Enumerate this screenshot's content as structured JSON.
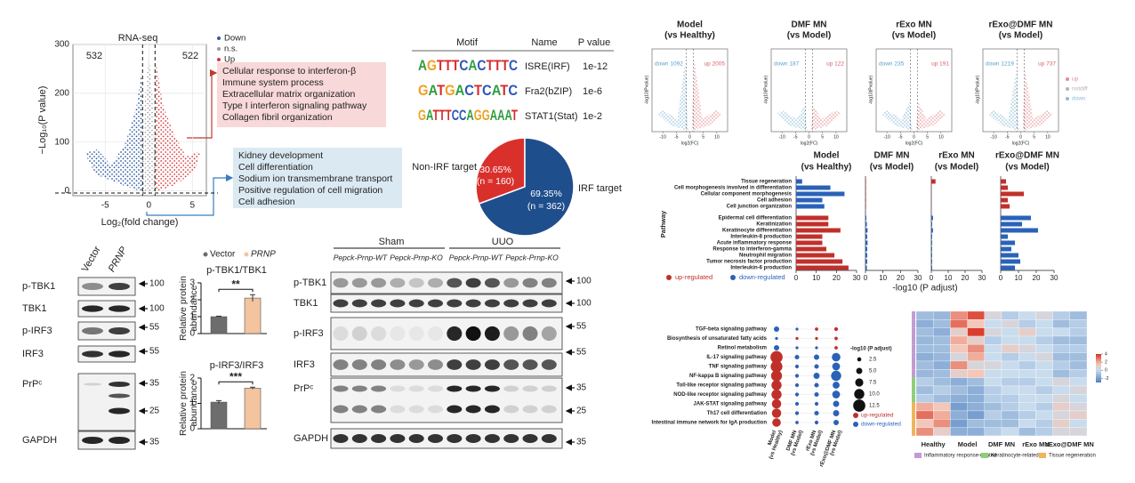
{
  "volcano": {
    "title": "RNA-seq",
    "legend": [
      {
        "label": "Down",
        "color": "#2f5c9c"
      },
      {
        "label": "n.s.",
        "color": "#9a9a9a"
      },
      {
        "label": "Up",
        "color": "#d8363a"
      }
    ],
    "count_down": 532,
    "count_up": 522,
    "xlim": [
      -8.7,
      6.6
    ],
    "ylim": [
      -10,
      300
    ],
    "xticks": [
      -5,
      0,
      5
    ],
    "yticks": [
      0,
      100,
      200,
      300
    ],
    "xlabel": "Log₂(fold change)",
    "ylabel": "−Log₁₀(P value)"
  },
  "terms_up": [
    "Cellular response to interferon-β",
    "Immune system process",
    "Extracellular matrix organization",
    "Type I interferon signaling pathway",
    "Collagen fibril organization"
  ],
  "terms_down": [
    "Kidney development",
    "Cell differentiation",
    "Sodium ion transmembrane transport",
    "Positive regulation of cell migration",
    "Cell adhesion"
  ],
  "motif": {
    "headers": [
      "Motif",
      "Name",
      "P value"
    ],
    "rows": [
      {
        "motif": "AGTTTCACTTTC",
        "name": "ISRE(IRF)",
        "p": "1e-12"
      },
      {
        "motif": "GATGACTCATC",
        "name": "Fra2(bZIP)",
        "p": "1e-6"
      },
      {
        "motif": "GATTTCCAGGAAAT",
        "name": "STAT1(Stat)",
        "p": "1e-2"
      }
    ]
  },
  "pie": {
    "slices": [
      {
        "label": "Non-IRF target",
        "value": 30.65,
        "percent": "30.65%",
        "n": "(n = 160)",
        "color": "#d9302c"
      },
      {
        "label": "IRF target",
        "value": 69.35,
        "percent": "69.35%",
        "n": "(n = 362)",
        "color": "#1f4e8c"
      }
    ]
  },
  "blot_c": {
    "lanes": [
      "Vector",
      "PRNP"
    ],
    "rows": [
      "p-TBK1",
      "TBK1",
      "p-IRF3",
      "IRF3",
      "PrPᶜ",
      "GAPDH"
    ],
    "markers": [
      100,
      100,
      55,
      55,
      35,
      25,
      35
    ]
  },
  "bars_d": {
    "legend": [
      {
        "label": "Vector",
        "color": "#6d6d6d"
      },
      {
        "label": "PRNP",
        "color": "#f3c49e"
      }
    ],
    "ylabel": [
      "Relative protein",
      "abundance"
    ],
    "charts": [
      {
        "title": "p-TBK1/TBK1",
        "ylim": [
          0,
          3
        ],
        "yticks": [
          0,
          1,
          2,
          3
        ],
        "values": [
          1,
          2.1
        ],
        "errors": [
          0.03,
          0.2
        ],
        "sig": "**"
      },
      {
        "title": "p-IRF3/IRF3",
        "ylim": [
          0,
          2
        ],
        "yticks": [
          0,
          1,
          2
        ],
        "values": [
          1.05,
          1.6
        ],
        "errors": [
          0.06,
          0.04
        ],
        "sig": "***"
      }
    ]
  },
  "blot_e": {
    "groups": [
      "Sham",
      "UUO"
    ],
    "genotypes": [
      "Pepck-Prnp-WT",
      "Pepck-Prnp-KO",
      "Pepck-Prnp-WT",
      "Pepck-Prnp-KO"
    ],
    "rows": [
      "p-TBK1",
      "TBK1",
      "p-IRF3",
      "IRF3",
      "PrPᶜ",
      "GAPDH"
    ],
    "markers": [
      100,
      100,
      55,
      55,
      35,
      25,
      35
    ]
  },
  "volcanos_f": {
    "panels": [
      {
        "title": [
          "Model",
          "(vs Healthy)"
        ],
        "down": "down 1092",
        "up": "up 2005"
      },
      {
        "title": [
          "DMF MN",
          "(vs Model)"
        ],
        "down": "down 187",
        "up": "up 122"
      },
      {
        "title": [
          "rExo MN",
          "(vs Model)"
        ],
        "down": "down 235",
        "up": "up 191"
      },
      {
        "title": [
          "rExo@DMF MN",
          "(vs Model)"
        ],
        "down": "down 1219",
        "up": "up 737"
      }
    ],
    "legend": [
      {
        "label": "up",
        "color": "#e58b8f"
      },
      {
        "label": "notdiff",
        "color": "#b5b5b5"
      },
      {
        "label": "down",
        "color": "#8bbbd9"
      }
    ],
    "xlim": [
      -14,
      14
    ],
    "xticks": [
      -10,
      -5,
      0,
      5,
      10
    ],
    "xlabel": "log2(FC)",
    "ylabel": "-log10(Pvalue)"
  },
  "pathways_g": {
    "titles": [
      [
        "Model",
        "(vs Healthy)"
      ],
      [
        "DMF MN",
        "(vs Model)"
      ],
      [
        "rExo MN",
        "(vs Model)"
      ],
      [
        "rExo@DMF MN",
        "(vs Model)"
      ]
    ],
    "terms": [
      "Tissue regeneration",
      "Cell morphogenesis involved in differentiation",
      "Cellular component morphogenesis",
      "Cell adhesion",
      "Cell junction organization",
      "Epidermal cell differentiation",
      "Keratinization",
      "Keratinocyte differentiation",
      "Interleukin-8 production",
      "Acute inflammatory response",
      "Response to interferon-gamma",
      "Neutrophil migration",
      "Tumor necrosis factor production",
      "Interleukin-6 production"
    ],
    "values": [
      [
        3,
        17,
        24,
        13,
        14,
        16,
        16,
        22,
        13,
        13,
        15,
        19,
        23,
        26
      ],
      [
        0.3,
        0.3,
        0.3,
        0.3,
        0.3,
        0.5,
        0.8,
        1.2,
        1,
        1.2,
        1,
        1,
        1,
        0.8
      ],
      [
        2.5,
        0.2,
        0.2,
        0.2,
        0.2,
        1,
        0.5,
        1,
        0.5,
        0.5,
        0.5,
        0.5,
        0.5,
        0.5
      ],
      [
        3,
        4,
        13,
        4,
        5,
        17,
        12,
        21,
        4,
        8,
        6,
        10,
        11,
        8
      ]
    ],
    "kinds": [
      [
        1,
        1,
        1,
        1,
        1,
        0,
        0,
        0,
        0,
        0,
        0,
        0,
        0,
        0
      ],
      [
        0,
        0,
        0,
        0,
        0,
        1,
        1,
        1,
        1,
        1,
        1,
        1,
        1,
        1
      ],
      [
        0,
        0,
        0,
        0,
        0,
        1,
        1,
        1,
        1,
        1,
        1,
        1,
        1,
        1
      ],
      [
        0,
        0,
        0,
        0,
        0,
        1,
        1,
        1,
        1,
        1,
        1,
        1,
        1,
        1
      ]
    ],
    "legend": [
      {
        "label": "up-regulated",
        "color": "#c0302b"
      },
      {
        "label": "down-regulated",
        "color": "#2a62b8"
      }
    ],
    "xlim": [
      0,
      30
    ],
    "xticks": [
      0,
      10,
      20,
      30
    ],
    "xlabel": "-log10 (P adjust)",
    "ylabel": "Pathway"
  },
  "dots_h": {
    "terms": [
      "TGF-beta signaling pathway",
      "Biosynthesis of unsaturated fatty acids",
      "Retinol metabolism",
      "IL-17 signaling pathway",
      "TNF signaling pathway",
      "NF-kappa B signaling pathway",
      "Toll-like receptor signaling pathway",
      "NOD-like receptor signaling pathway",
      "JAK-STAT signaling pathway",
      "Th17 cell differentiation",
      "Intestinal immune network for IgA production"
    ],
    "columns": [
      [
        "Model",
        "(vs Healthy)"
      ],
      [
        "DMF MN",
        "(vs Model)"
      ],
      [
        "rExo MN",
        "(vs Model)"
      ],
      [
        "rExo@DMF MN",
        "(vs Model)"
      ]
    ],
    "sizes": [
      [
        4,
        1,
        1.5,
        2
      ],
      [
        1,
        1,
        1,
        1.5
      ],
      [
        4,
        1,
        1,
        1.5
      ],
      [
        12.5,
        3,
        4,
        8
      ],
      [
        12,
        2,
        3,
        7
      ],
      [
        11,
        2,
        5,
        10
      ],
      [
        10,
        2,
        3,
        6
      ],
      [
        10,
        2,
        3,
        7
      ],
      [
        9,
        2,
        2,
        5
      ],
      [
        9,
        2,
        3,
        5
      ],
      [
        8,
        1.5,
        2,
        4
      ]
    ],
    "kinds": [
      [
        1,
        1,
        0,
        0
      ],
      [
        1,
        0,
        0,
        0
      ],
      [
        1,
        1,
        1,
        0
      ],
      [
        0,
        1,
        1,
        1
      ],
      [
        0,
        1,
        1,
        1
      ],
      [
        0,
        1,
        1,
        1
      ],
      [
        0,
        1,
        1,
        1
      ],
      [
        0,
        1,
        1,
        1
      ],
      [
        0,
        1,
        1,
        1
      ],
      [
        0,
        1,
        1,
        1
      ],
      [
        0,
        1,
        1,
        1
      ]
    ],
    "size_legend": {
      "title": "-log10 (P adjust)",
      "ticks": [
        2.5,
        {
          "value": 5,
          "label": "5.0"
        },
        7.5,
        {
          "value": 10,
          "label": "10.0"
        },
        12.5
      ]
    },
    "legend": [
      {
        "label": "up-regulated",
        "color": "#c0302b"
      },
      {
        "label": "down-regulated",
        "color": "#2a62b8"
      }
    ]
  },
  "heatmap_i": {
    "groups": [
      "Healthy",
      "Model",
      "DMF MN",
      "rExo MN",
      "rExo@DMF MN"
    ],
    "legend": [
      {
        "label": "Inflammatory response-related",
        "color": "#c39bd3"
      },
      {
        "label": "Keratinocyte-related",
        "color": "#8fcf7a"
      },
      {
        "label": "Tissue regeneration",
        "color": "#f0b45a"
      }
    ],
    "row_kinds": [
      0,
      0,
      0,
      0,
      0,
      0,
      0,
      0,
      1,
      1,
      1,
      2,
      2,
      2,
      2
    ],
    "values": [
      [
        -1,
        -1.2,
        2.5,
        3.5,
        0.5,
        -0.5,
        0,
        0.5,
        -0.5,
        -1
      ],
      [
        -1.5,
        -1,
        3,
        1.5,
        0,
        0.5,
        -0.5,
        0,
        -1,
        -0.5
      ],
      [
        -1,
        -1.5,
        1,
        3.8,
        0.5,
        0,
        1,
        0,
        0,
        -0.5
      ],
      [
        -1.2,
        -1,
        2,
        1,
        -0.5,
        0,
        0,
        -0.5,
        -1,
        -1
      ],
      [
        -1,
        -1,
        1.5,
        2.5,
        0,
        1,
        0.5,
        0,
        -0.5,
        -0.5
      ],
      [
        -1.5,
        -1.2,
        0.5,
        2,
        0,
        -0.5,
        0,
        0.5,
        -1,
        -1
      ],
      [
        -1,
        -1.5,
        2.5,
        0.5,
        0.5,
        0,
        -0.5,
        0,
        -0.5,
        -1
      ],
      [
        -1.2,
        -1,
        1,
        1.5,
        0,
        0,
        0,
        0,
        -1,
        -0.5
      ],
      [
        -0.5,
        -1,
        -1.5,
        -1,
        0,
        -0.5,
        -0.5,
        0,
        0.5,
        0
      ],
      [
        -1,
        -0.5,
        -1,
        -1.5,
        -0.5,
        0,
        0,
        -0.5,
        0,
        0.5
      ],
      [
        -0.5,
        -1,
        -1.5,
        -1.5,
        -0.5,
        -0.5,
        0,
        0,
        0.5,
        0
      ],
      [
        2,
        1.5,
        -2,
        -1.5,
        -1,
        -0.5,
        0,
        -0.5,
        1,
        0.5
      ],
      [
        3,
        2,
        -1.5,
        -2,
        -0.5,
        -1,
        -0.5,
        0,
        0.5,
        1
      ],
      [
        1.5,
        2.5,
        -2,
        -1,
        -1,
        -1,
        0,
        -0.5,
        1,
        0
      ],
      [
        2.5,
        1,
        -1.5,
        -1.5,
        -0.5,
        0,
        -1,
        -0.5,
        0.5,
        0.5
      ]
    ],
    "clim": [
      -3,
      4
    ],
    "cticks": [
      4,
      2,
      0,
      -2
    ]
  }
}
